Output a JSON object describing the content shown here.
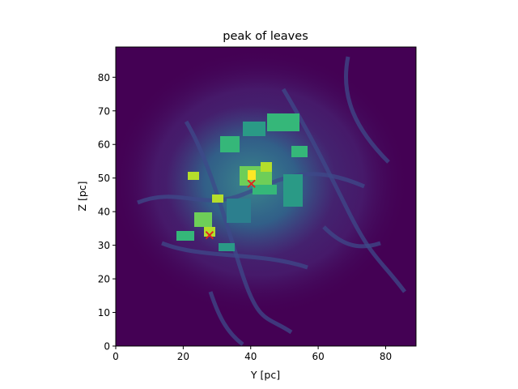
{
  "chart_data": {
    "type": "heatmap",
    "title": "peak of leaves",
    "xlabel": "Y [pc]",
    "ylabel": "Z [pc]",
    "xlim": [
      0,
      89
    ],
    "ylim": [
      0,
      89
    ],
    "xticks": [
      0,
      20,
      40,
      60,
      80
    ],
    "yticks": [
      0,
      10,
      20,
      30,
      40,
      50,
      60,
      70,
      80
    ],
    "colormap": "viridis",
    "background_color": "#440154",
    "peaks": [
      {
        "x": 40.2,
        "y": 48.3
      },
      {
        "x": 27.8,
        "y": 33.0
      }
    ],
    "peak_marker": "x",
    "peak_color": "#e02020"
  }
}
